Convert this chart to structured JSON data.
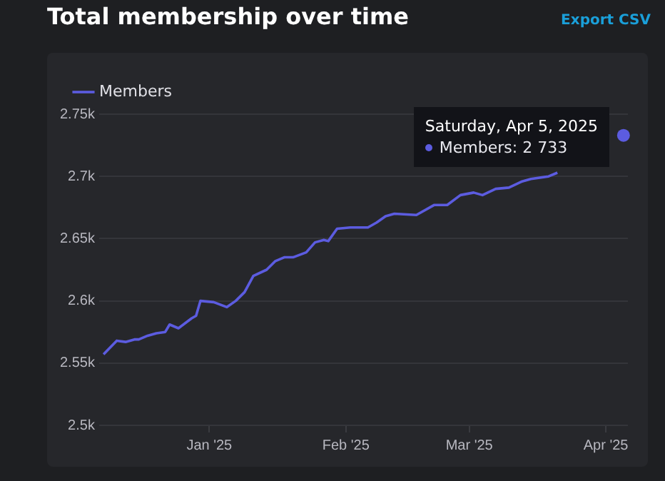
{
  "chart_data": {
    "type": "line",
    "title": "Total membership over time",
    "x": [
      "2024-12-08",
      "2024-12-11",
      "2024-12-13",
      "2024-12-15",
      "2024-12-16",
      "2024-12-18",
      "2024-12-20",
      "2024-12-22",
      "2024-12-23",
      "2024-12-25",
      "2024-12-28",
      "2024-12-29",
      "2024-12-30",
      "2025-01-02",
      "2025-01-05",
      "2025-01-07",
      "2025-01-09",
      "2025-01-11",
      "2025-01-14",
      "2025-01-16",
      "2025-01-18",
      "2025-01-20",
      "2025-01-23",
      "2025-01-25",
      "2025-01-27",
      "2025-01-28",
      "2025-01-30",
      "2025-02-02",
      "2025-02-06",
      "2025-02-08",
      "2025-02-10",
      "2025-02-12",
      "2025-02-17",
      "2025-02-21",
      "2025-02-24",
      "2025-02-27",
      "2025-03-02",
      "2025-03-04",
      "2025-03-07",
      "2025-03-10",
      "2025-03-13",
      "2025-03-15",
      "2025-03-19",
      "2025-03-21",
      "2025-03-28",
      "2025-04-05"
    ],
    "series": [
      {
        "name": "Members",
        "color": "#5c5ce0",
        "values": [
          2557,
          2568,
          2567,
          2569,
          2569,
          2572,
          2574,
          2575,
          2581,
          2578,
          2586,
          2588,
          2600,
          2599,
          2595,
          2600,
          2607,
          2620,
          2625,
          2632,
          2635,
          2635,
          2639,
          2647,
          2649,
          2648,
          2658,
          2659,
          2659,
          2663,
          2668,
          2670,
          2669,
          2677,
          2677,
          2685,
          2687,
          2685,
          2690,
          2691,
          2696,
          2698,
          2700,
          2703,
          null,
          2733
        ]
      }
    ],
    "xlim": [
      "2024-12-07",
      "2025-04-06"
    ],
    "xticks": [
      {
        "value": "2025-01-01",
        "label": "Jan '25"
      },
      {
        "value": "2025-02-01",
        "label": "Feb '25"
      },
      {
        "value": "2025-03-01",
        "label": "Mar '25"
      },
      {
        "value": "2025-04-01",
        "label": "Apr '25"
      }
    ],
    "ylim": [
      2500,
      2750
    ],
    "yticks": [
      {
        "value": 2500,
        "label": "2.5k"
      },
      {
        "value": 2550,
        "label": "2.55k"
      },
      {
        "value": 2600,
        "label": "2.6k"
      },
      {
        "value": 2650,
        "label": "2.65k"
      },
      {
        "value": 2700,
        "label": "2.7k"
      },
      {
        "value": 2750,
        "label": "2.75k"
      }
    ],
    "grid": "y",
    "legend": "top left",
    "marker": "none",
    "line_style": "solid",
    "annotations": [
      "Export CSV",
      {
        "text": "Saturday, Apr 5, 2025",
        "x": "2025-04-05",
        "y": 2733
      },
      "Members: 2 733"
    ]
  }
}
